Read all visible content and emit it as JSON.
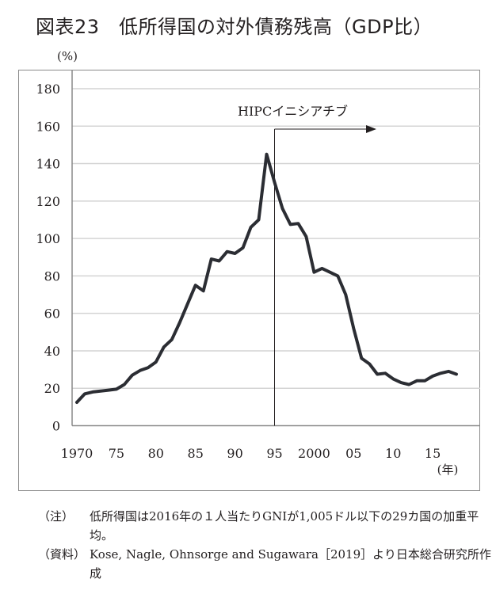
{
  "title": "図表23　低所得国の対外債務残高（GDP比）",
  "notes": [
    {
      "label": "（注）",
      "text": "低所得国は2016年の１人当たりGNIが1,005ドル以下の29カ国の加重平均。"
    },
    {
      "label": "（資料）",
      "text": "Kose, Nagle, Ohnsorge and Sugawara［2019］より日本総合研究所作成"
    }
  ],
  "chart_data": {
    "type": "line",
    "title": "低所得国の対外債務残高（GDP比）",
    "ylabel": "(%)",
    "xlabel": "(年)",
    "ylim": [
      0,
      180
    ],
    "xlim": [
      1970,
      2018
    ],
    "yticks": [
      0,
      20,
      40,
      60,
      80,
      100,
      120,
      140,
      160,
      180
    ],
    "xticks": [
      {
        "v": 1970,
        "label": "1970"
      },
      {
        "v": 1975,
        "label": "75"
      },
      {
        "v": 1980,
        "label": "80"
      },
      {
        "v": 1985,
        "label": "85"
      },
      {
        "v": 1990,
        "label": "90"
      },
      {
        "v": 1995,
        "label": "95"
      },
      {
        "v": 2000,
        "label": "2000"
      },
      {
        "v": 2005,
        "label": "05"
      },
      {
        "v": 2010,
        "label": "10"
      },
      {
        "v": 2015,
        "label": "15"
      }
    ],
    "grid": true,
    "annotation": {
      "text": "HIPCイニシアチブ",
      "x": 1995
    },
    "series": [
      {
        "name": "対外債務残高（GDP比）",
        "color": "#2b2d33",
        "x": [
          1970,
          1971,
          1972,
          1973,
          1974,
          1975,
          1976,
          1977,
          1978,
          1979,
          1980,
          1981,
          1982,
          1983,
          1984,
          1985,
          1986,
          1987,
          1988,
          1989,
          1990,
          1991,
          1992,
          1993,
          1994,
          1995,
          1996,
          1997,
          1998,
          1999,
          2000,
          2001,
          2002,
          2003,
          2004,
          2005,
          2006,
          2007,
          2008,
          2009,
          2010,
          2011,
          2012,
          2013,
          2014,
          2015,
          2016,
          2017,
          2018
        ],
        "values": [
          12.5,
          17,
          18,
          18.5,
          19,
          19.5,
          22,
          27,
          29.5,
          31,
          34,
          42,
          46,
          55,
          65,
          75,
          72,
          89,
          88,
          93,
          92,
          95,
          106,
          110,
          145,
          130,
          116,
          107.5,
          108,
          101,
          82,
          84,
          82,
          80,
          70,
          52,
          36,
          33,
          27.5,
          28,
          25,
          23,
          22,
          24,
          24,
          26.5,
          28,
          29,
          27.5
        ]
      }
    ]
  }
}
